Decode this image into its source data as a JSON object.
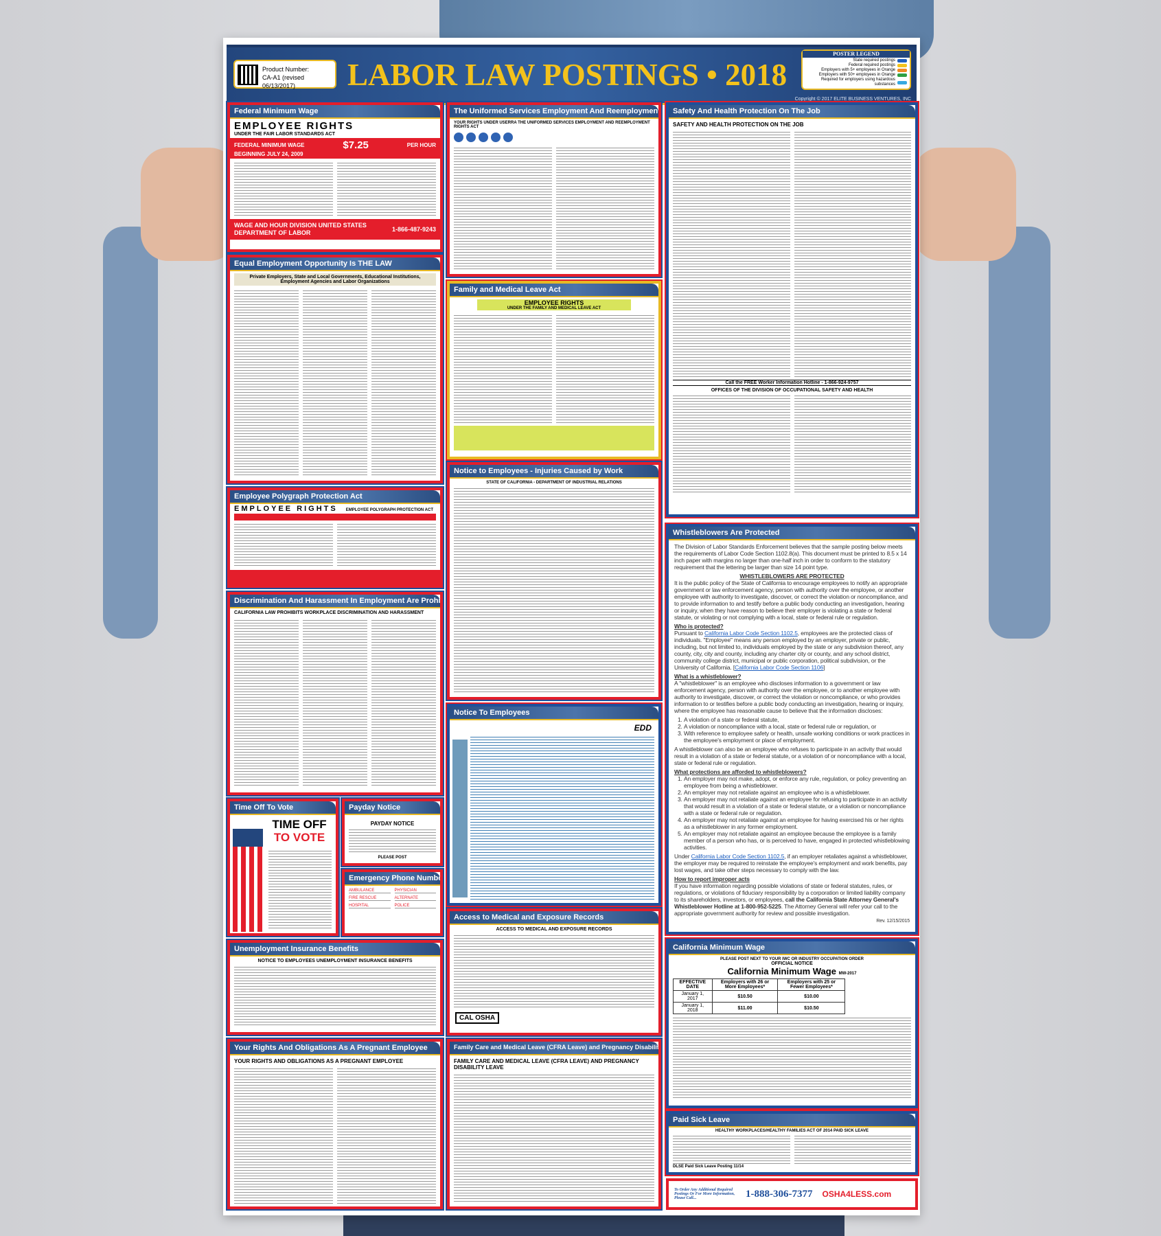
{
  "header": {
    "product_label": "Product Number:",
    "product_number": "CA-A1 (revised 06/13/2017)",
    "title": "LABOR LAW POSTINGS • 2018",
    "legend_title": "POSTER LEGEND",
    "legend": [
      {
        "label": "State required postings",
        "color": "#1f5fbf"
      },
      {
        "label": "Federal required postings",
        "color": "#f3c21c"
      },
      {
        "label": "Employers with 5+ employees in Orange",
        "color": "#f08a24"
      },
      {
        "label": "Employers with 50+ employees in Orange",
        "color": "#2ea043"
      },
      {
        "label": "Required for employers using hazardous substances",
        "color": "#36a9e1"
      }
    ],
    "copyright": "Copyright © 2017 ELITE BUSINESS VENTURES, INC"
  },
  "sections": {
    "fmw": {
      "title": "Federal Minimum Wage",
      "headline": "EMPLOYEE RIGHTS",
      "sub": "UNDER THE FAIR LABOR STANDARDS ACT",
      "wage_label": "FEDERAL MINIMUM WAGE",
      "wage": "$7.25",
      "per": "PER HOUR",
      "since": "BEGINNING JULY 24, 2009",
      "agency": "WAGE AND HOUR DIVISION UNITED STATES DEPARTMENT OF LABOR",
      "phone": "1-866-487-9243"
    },
    "eeo": {
      "title": "Equal Employment Opportunity Is THE LAW",
      "sub": "Private Employers, State and Local Governments, Educational Institutions, Employment Agencies and Labor Organizations"
    },
    "poly": {
      "title": "Employee Polygraph Protection Act",
      "headline": "EMPLOYEE RIGHTS",
      "sub": "EMPLOYEE POLYGRAPH PROTECTION ACT"
    },
    "disc": {
      "title": "Discrimination And Harassment In Employment Are Prohibited By Law",
      "sub": "CALIFORNIA LAW PROHIBITS WORKPLACE DISCRIMINATION AND HARASSMENT"
    },
    "vote": {
      "title": "Time Off To Vote",
      "line1": "TIME OFF",
      "line2": "TO VOTE"
    },
    "payday": {
      "title": "Payday Notice",
      "headline": "PAYDAY NOTICE",
      "post": "PLEASE POST"
    },
    "emerg": {
      "title": "Emergency Phone Numbers",
      "fields": [
        "AMBULANCE",
        "PHYSICIAN",
        "FIRE RESCUE",
        "ALTERNATE",
        "HOSPITAL",
        "POLICE"
      ]
    },
    "ui": {
      "title": "Unemployment Insurance Benefits",
      "headline": "NOTICE TO EMPLOYEES UNEMPLOYMENT INSURANCE BENEFITS"
    },
    "preg": {
      "title": "Your Rights And Obligations As A Pregnant Employee",
      "headline": "YOUR RIGHTS AND OBLIGATIONS AS A PREGNANT EMPLOYEE"
    },
    "userra": {
      "title": "The Uniformed Services Employment And Reemployment Rights Act",
      "headline": "YOUR RIGHTS UNDER USERRA THE UNIFORMED SERVICES EMPLOYMENT AND REEMPLOYMENT RIGHTS ACT"
    },
    "fmla": {
      "title": "Family and Medical Leave Act",
      "headline": "EMPLOYEE RIGHTS",
      "sub": "UNDER THE FAMILY AND MEDICAL LEAVE ACT"
    },
    "inj": {
      "title": "Notice to Employees - Injuries Caused by Work",
      "headline": "STATE OF CALIFORNIA - DEPARTMENT OF INDUSTRIAL RELATIONS"
    },
    "nte": {
      "title": "Notice To Employees",
      "logo": "EDD"
    },
    "access": {
      "title": "Access to Medical and Exposure Records",
      "headline": "ACCESS TO MEDICAL AND EXPOSURE RECORDS",
      "logo": "CAL OSHA"
    },
    "cfra": {
      "title": "Family Care and Medical Leave (CFRA Leave) and Pregnancy Disability Leave",
      "headline": "FAMILY CARE AND MEDICAL LEAVE (CFRA LEAVE) AND PREGNANCY DISABILITY LEAVE"
    },
    "safety": {
      "title": "Safety And Health Protection On The Job",
      "headline": "SAFETY AND HEALTH PROTECTION ON THE JOB",
      "hotline": "Call the FREE Worker Information Hotline - 1-866-924-9757",
      "offices": "OFFICES OF THE DIVISION OF OCCUPATIONAL SAFETY AND HEALTH"
    },
    "wb": {
      "title": "Whistleblowers Are Protected",
      "intro": "The Division of Labor Standards Enforcement believes that the sample posting below meets the requirements of Labor Code Section 1102.8(a). This document must be printed to 8.5 x 14 inch paper with margins no larger than one-half inch in order to conform to the statutory requirement that the lettering be larger than size 14 point type.",
      "heading": "WHISTLEBLOWERS ARE PROTECTED",
      "policy": "It is the public policy of the State of California to encourage employees to notify an appropriate government or law enforcement agency, person with authority over the employee, or another employee with authority to investigate, discover, or correct the violation or noncompliance, and to provide information to and testify before a public body conducting an investigation, hearing or inquiry, when they have reason to believe their employer is violating a state or federal statute, or violating or not complying with a local, state or federal rule or regulation.",
      "who_h": "Who is protected?",
      "who_pre": "Pursuant to ",
      "who_link": "California Labor Code Section 1102.5",
      "who_text": ", employees are the protected class of individuals. \"Employee\" means any person employed by an employer, private or public, including, but not limited to, individuals employed by the state or any subdivision thereof, any county, city, city and county, including any charter city or county, and any school district, community college district, municipal or public corporation, political subdivision, or the University of California. [",
      "who_link2": "California Labor Code Section 1106",
      "who_end": "]",
      "what_h": "What is a whistleblower?",
      "what_text": "A \"whistleblower\" is an employee who discloses information to a government or law enforcement agency, person with authority over the employee, or to another employee with authority to investigate, discover, or correct the violation or noncompliance, or who provides information to or testifies before a public body conducting an investigation, hearing or inquiry, where the employee has reasonable cause to believe that the information discloses:",
      "what_list": [
        "A violation of a state or federal statute,",
        "A violation or noncompliance with a local, state or federal rule or regulation, or",
        "With reference to employee safety or health, unsafe working conditions or work practices in the employee's employment or place of employment."
      ],
      "what_also": "A whistleblower can also be an employee who refuses to participate in an activity that would result in a violation of a state or federal statute, or a violation of or noncompliance with a local, state or federal rule or regulation.",
      "prot_h": "What protections are afforded to whistleblowers?",
      "prot_list": [
        "An employer may not make, adopt, or enforce any rule, regulation, or policy preventing an employee from being a whistleblower.",
        "An employer may not retaliate against an employee who is a whistleblower.",
        "An employer may not retaliate against an employee for refusing to participate in an activity that would result in a violation of a state or federal statute, or a violation or noncompliance with a state or federal rule or regulation.",
        "An employer may not retaliate against an employee for having exercised his or her rights as a whistleblower in any former employment.",
        "An employer may not retaliate against an employee because the employee is a family member of a person who has, or is perceived to have, engaged in protected whistleblowing activities."
      ],
      "under_pre": "Under ",
      "under_link": "California Labor Code Section 1102.5",
      "under_text": ", if an employer retaliates against a whistleblower, the employer may be required to reinstate the employee's employment and work benefits, pay lost wages, and take other steps necessary to comply with the law.",
      "report_h": "How to report improper acts",
      "report_text": "If you have information regarding possible violations of state or federal statutes, rules, or regulations, or violations of fiduciary responsibility by a corporation or limited liability company to its shareholders, investors, or employees, ",
      "report_bold": "call the California State Attorney General's Whistleblower Hotline at 1-800-952-5225",
      "report_end": ". The Attorney General will refer your call to the appropriate government authority for review and possible investigation.",
      "rev": "Rev. 12/15/2015"
    },
    "camw": {
      "title": "California Minimum Wage",
      "pre": "PLEASE POST NEXT TO YOUR IWC OR INDUSTRY OCCUPATION ORDER",
      "official": "OFFICIAL NOTICE",
      "headline": "California Minimum Wage",
      "code": "MW-2017",
      "table_headers": [
        "EFFECTIVE DATE",
        "Employers with 26 or More Employees*",
        "Employers with 25 or Fewer Employees*"
      ],
      "rows": [
        [
          "January 1, 2017",
          "$10.50",
          "$10.00"
        ],
        [
          "January 1, 2018",
          "$11.00",
          "$10.50"
        ]
      ]
    },
    "sick": {
      "title": "Paid Sick Leave",
      "headline": "HEALTHY WORKPLACES/HEALTHY FAMILIES ACT OF 2014 PAID SICK LEAVE",
      "footer_note": "DLSE Paid Sick Leave Posting 11/14"
    }
  },
  "footer": {
    "note": "To Order Any Additional Required Postings Or For More Information, Please Call...",
    "phone": "1-888-306-7377",
    "brand": "OSHA4LESS.com"
  }
}
